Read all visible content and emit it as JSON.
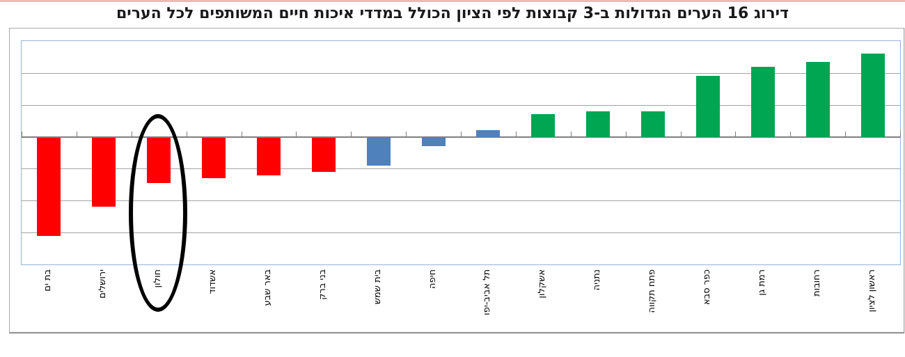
{
  "chart_data": {
    "type": "bar",
    "title": "דירוג 16 הערים הגדולות ב-3 קבוצות לפי הציון הכולל במדדי איכות חיים המשותפים לכל הערים",
    "categories": [
      "בת ים",
      "ירושלים",
      "חולון",
      "אשדוד",
      "באר שבע",
      "בני ברק",
      "בית שמש",
      "חיפה",
      "תל אביב-יפו",
      "אשקלון",
      "נתניה",
      "פתח תקווה",
      "כפר סבא",
      "רמת גן",
      "רחובות",
      "ראשון לציון"
    ],
    "values": [
      -3.1,
      -2.2,
      -1.45,
      -1.3,
      -1.2,
      -1.1,
      -0.9,
      -0.3,
      0.2,
      0.7,
      0.8,
      0.8,
      1.9,
      2.2,
      2.35,
      2.6
    ],
    "groups": [
      "low",
      "low",
      "low",
      "low",
      "low",
      "low",
      "mid",
      "mid",
      "mid",
      "high",
      "high",
      "high",
      "high",
      "high",
      "high",
      "high"
    ],
    "group_colors": {
      "low": "#fe0000",
      "mid": "#4f81bd",
      "high": "#00a651"
    },
    "ylim": [
      -4,
      3
    ],
    "gridline_step": 1,
    "y_axis_tick_labels_visible": false,
    "grid": true,
    "legend": "none",
    "x_labels_rotation_degrees": -90,
    "annotation": {
      "shape": "ellipse",
      "category": "חולון",
      "color": "#000000"
    }
  },
  "colors": {
    "top_strip": "#f4b6b6",
    "plot_border": "#95b3d7",
    "gridline": "#a3a3a3",
    "frame_border": "#a9a9a9"
  }
}
